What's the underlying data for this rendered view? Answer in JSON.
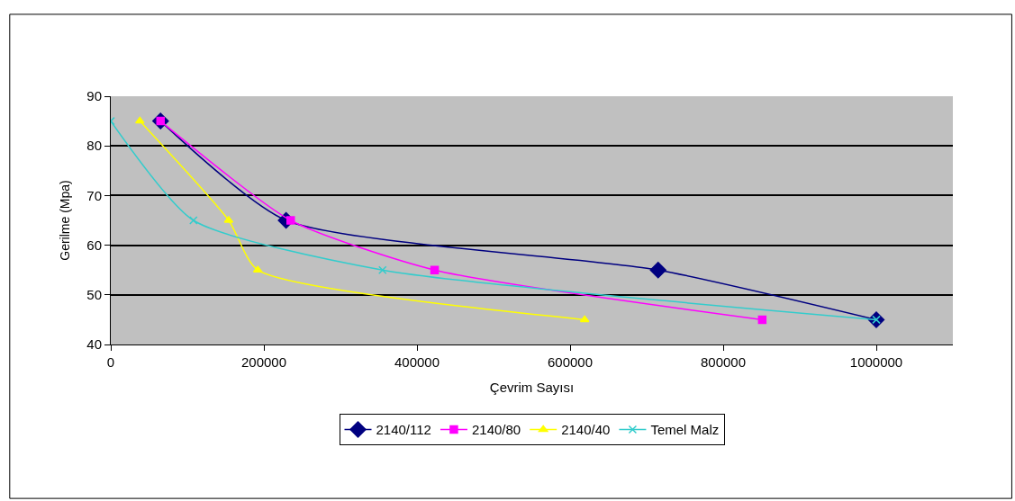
{
  "chart_data": {
    "type": "line",
    "xlabel": "Çevrim Sayısı",
    "ylabel": "Gerilme (Mpa)",
    "xlim": [
      0,
      1100000
    ],
    "xticks": [
      0,
      200000,
      400000,
      600000,
      800000,
      1000000
    ],
    "ylim": [
      40,
      90
    ],
    "yticks": [
      40,
      50,
      60,
      70,
      80,
      90
    ],
    "grid": "y",
    "legend": "bottom",
    "series": [
      {
        "name": "2140/112",
        "color": "#000080",
        "marker": "diamond",
        "x": [
          65000,
          229000,
          715000,
          1000000
        ],
        "values": [
          85,
          65,
          55,
          45
        ]
      },
      {
        "name": "2140/80",
        "color": "#ff00ff",
        "marker": "square",
        "x": [
          65000,
          235000,
          423000,
          851000
        ],
        "values": [
          85,
          65,
          55,
          45
        ]
      },
      {
        "name": "2140/40",
        "color": "#ffff00",
        "marker": "triangle",
        "x": [
          38000,
          154000,
          192000,
          619000
        ],
        "values": [
          85,
          65,
          55,
          45
        ]
      },
      {
        "name": "Temel Malz",
        "color": "#33cccc",
        "marker": "cross",
        "x": [
          0,
          108000,
          355000,
          1000000
        ],
        "values": [
          85,
          65,
          55,
          45
        ]
      }
    ]
  }
}
